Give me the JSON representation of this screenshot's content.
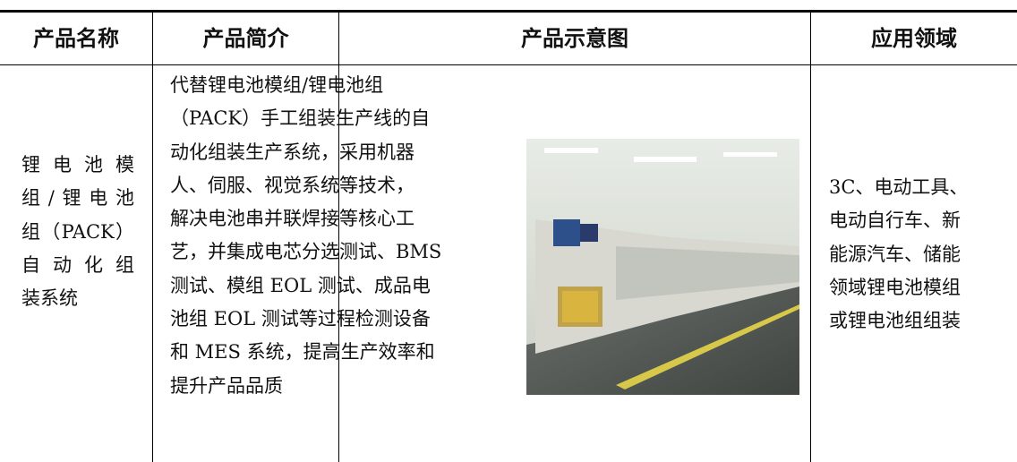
{
  "table": {
    "header": [
      "产品名称",
      "产品简介",
      "产品示意图",
      "应用领域"
    ],
    "rows": [
      [
        [
          "锂电池模",
          "组/锂电池",
          "组（PACK）",
          "自动化组",
          "装系统"
        ],
        [
          "代替锂电池模组/锂电池组",
          "（PACK）手工组装生产线的自",
          "动化组装生产系统，采用机器",
          "人、伺服、视觉系统等技术，",
          "解决电池串并联焊接等核心工",
          "艺，并集成电芯分选测试、BMS",
          "测试、模组 EOL 测试、成品电",
          "池组 EOL 测试等过程检测设备",
          "和 MES 系统，提高生产效率和",
          "提升产品品质"
        ],
        [
          "3C、电动工具、",
          "电动自行车、新",
          "能源汽车、储能",
          "领域锂电池模组",
          "或锂电池组组装"
        ]
      ]
    ]
  }
}
